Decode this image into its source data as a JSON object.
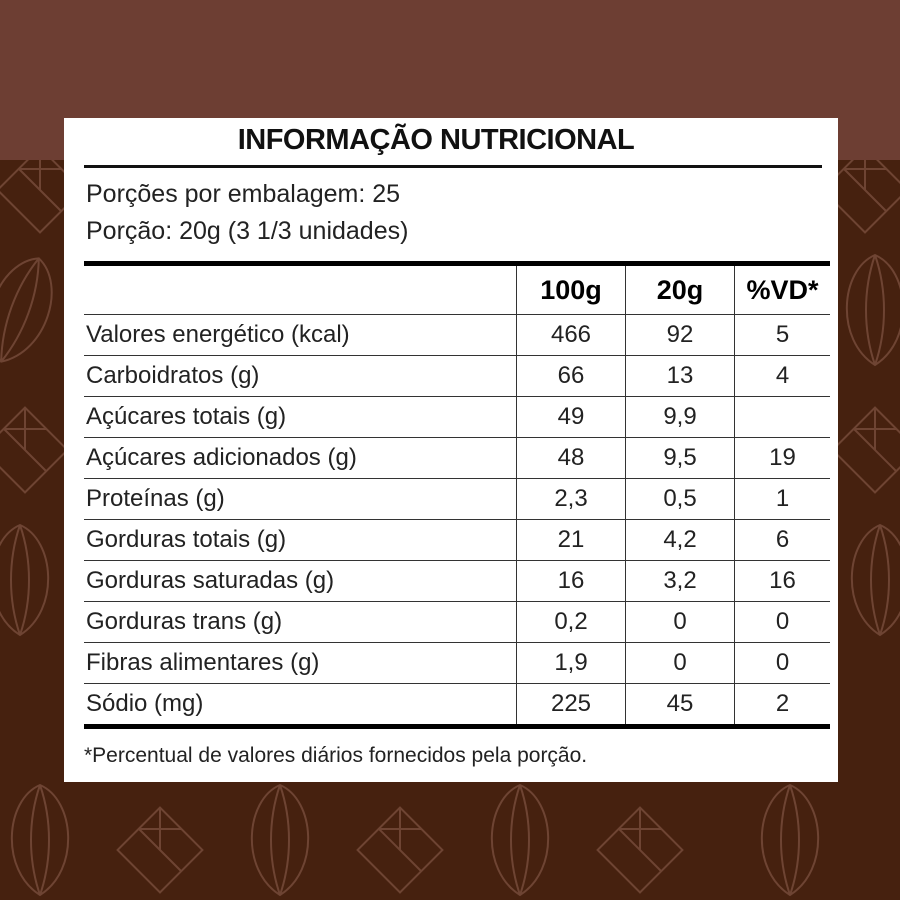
{
  "title": "INFORMAÇÃO NUTRICIONAL",
  "servings_per_package": "Porções por embalagem: 25",
  "serving_size": "Porção: 20g (3 1/3 unidades)",
  "table": {
    "headers": [
      "",
      "100g",
      "20g",
      "%VD*"
    ],
    "rows": [
      [
        "Valores energético (kcal)",
        "466",
        "92",
        "5"
      ],
      [
        "Carboidratos (g)",
        "66",
        "13",
        "4"
      ],
      [
        "Açúcares totais (g)",
        "49",
        "9,9",
        ""
      ],
      [
        "Açúcares adicionados (g)",
        "48",
        "9,5",
        "19"
      ],
      [
        "Proteínas (g)",
        "2,3",
        "0,5",
        "1"
      ],
      [
        "Gorduras totais (g)",
        "21",
        "4,2",
        "6"
      ],
      [
        "Gorduras saturadas (g)",
        "16",
        "3,2",
        "16"
      ],
      [
        "Gorduras trans (g)",
        "0,2",
        "0",
        "0"
      ],
      [
        "Fibras alimentares (g)",
        "1,9",
        "0",
        "0"
      ],
      [
        "Sódio (mg)",
        "225",
        "45",
        "2"
      ]
    ]
  },
  "footnote": "*Percentual de valores diários fornecidos pela porção.",
  "colors": {
    "top_band": "#6d3e33",
    "background": "#46210f",
    "pattern": "#6e4433"
  },
  "pattern_icons": [
    "chocolate-bar-icon",
    "cacao-pod-icon"
  ]
}
